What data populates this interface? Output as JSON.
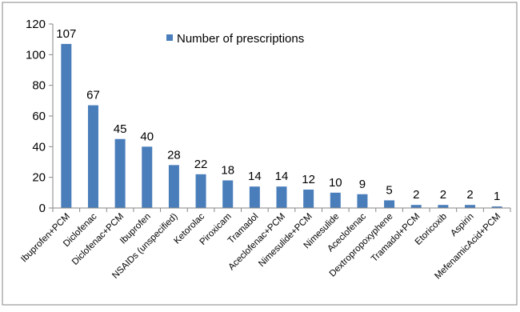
{
  "chart_data": {
    "type": "bar",
    "categories": [
      "Ibuprofen+PCM",
      "Diclofenac",
      "Diclofenac+PCM",
      "Ibuprofen",
      "NSAIDs (unspecified)",
      "Ketorolac",
      "Piroxicam",
      "Tramadol",
      "Aceclofenac+PCM",
      "Nimesulide+PCM",
      "Nimesulide",
      "Aceclofenac",
      "Dextropropoxyphene",
      "Tramadol+PCM",
      "Etoricoxib",
      "Aspirin",
      "MefenamicAcid+PCM"
    ],
    "series": [
      {
        "name": "Number of prescriptions",
        "values": [
          107,
          67,
          45,
          40,
          28,
          22,
          18,
          14,
          14,
          12,
          10,
          9,
          5,
          2,
          2,
          2,
          1
        ]
      }
    ],
    "ylim": [
      0,
      120
    ],
    "yticks": [
      0,
      20,
      40,
      60,
      80,
      100,
      120
    ],
    "data_labels": true,
    "grid": false,
    "legend": "top-center",
    "colors": {
      "bar": "#4a7ebb",
      "axis": "#868686",
      "border": "#868686"
    }
  }
}
